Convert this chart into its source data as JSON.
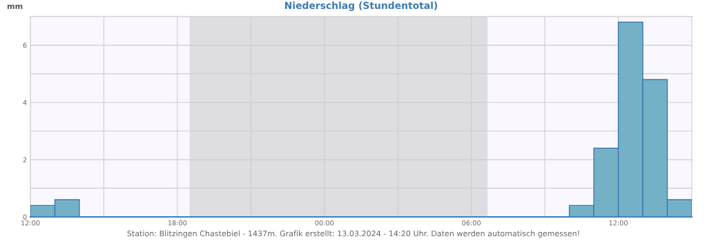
{
  "chart_data": {
    "type": "histogram",
    "title": "Niederschlag (Stundentotal)",
    "ylabel": "mm",
    "bins": [
      "2024-03-12T12:00",
      "2024-03-12T13:00",
      "2024-03-12T14:00",
      "2024-03-12T15:00",
      "2024-03-12T16:00",
      "2024-03-12T17:00",
      "2024-03-12T18:00",
      "2024-03-12T19:00",
      "2024-03-12T20:00",
      "2024-03-12T21:00",
      "2024-03-12T22:00",
      "2024-03-12T23:00",
      "2024-03-13T00:00",
      "2024-03-13T01:00",
      "2024-03-13T02:00",
      "2024-03-13T03:00",
      "2024-03-13T04:00",
      "2024-03-13T05:00",
      "2024-03-13T06:00",
      "2024-03-13T07:00",
      "2024-03-13T08:00",
      "2024-03-13T09:00",
      "2024-03-13T10:00",
      "2024-03-13T11:00",
      "2024-03-13T12:00",
      "2024-03-13T13:00",
      "2024-03-13T14:00",
      "2024-03-13T15:00"
    ],
    "values": [
      0.4,
      0.6,
      0,
      0,
      0,
      0,
      0,
      0,
      0,
      0,
      0,
      0,
      0,
      0,
      0,
      0,
      0,
      0,
      0,
      0,
      0,
      0,
      0.4,
      2.4,
      6.8,
      4.8,
      0.6
    ],
    "color": "#74b1c6",
    "xlim": [
      "2024-03-12T12:00",
      "2024-03-13T15:00"
    ],
    "xticks": [
      {
        "value": "2024-03-12T12:00",
        "label": "12:00"
      },
      {
        "value": "2024-03-12T15:00",
        "label": null
      },
      {
        "value": "2024-03-12T18:00",
        "label": "18:00"
      },
      {
        "value": "2024-03-12T21:00",
        "label": null
      },
      {
        "value": "2024-03-13T00:00",
        "label": "00:00"
      },
      {
        "value": "2024-03-13T03:00",
        "label": null
      },
      {
        "value": "2024-03-13T06:00",
        "label": "06:00"
      },
      {
        "value": "2024-03-13T09:00",
        "label": null
      },
      {
        "value": "2024-03-13T12:00",
        "label": "12:00"
      }
    ],
    "ylim": [
      0,
      7
    ],
    "yticks": [
      0,
      {
        "value": 1,
        "label": null
      },
      2,
      {
        "value": 3,
        "label": null
      },
      4,
      {
        "value": 5,
        "label": null
      },
      6,
      {
        "value": 7,
        "label": null
      }
    ],
    "grid": true,
    "bands": [
      {
        "axis": "x",
        "from": "2024-03-12T18:30",
        "to": "2024-03-13T06:40",
        "color": "#dedee2"
      }
    ],
    "annotations": [
      "Station: Blitzingen Chastebiel - 1437m. Grafik erstellt: 13.03.2024 - 14:20 Uhr. Daten werden automatisch gemessen!"
    ]
  }
}
